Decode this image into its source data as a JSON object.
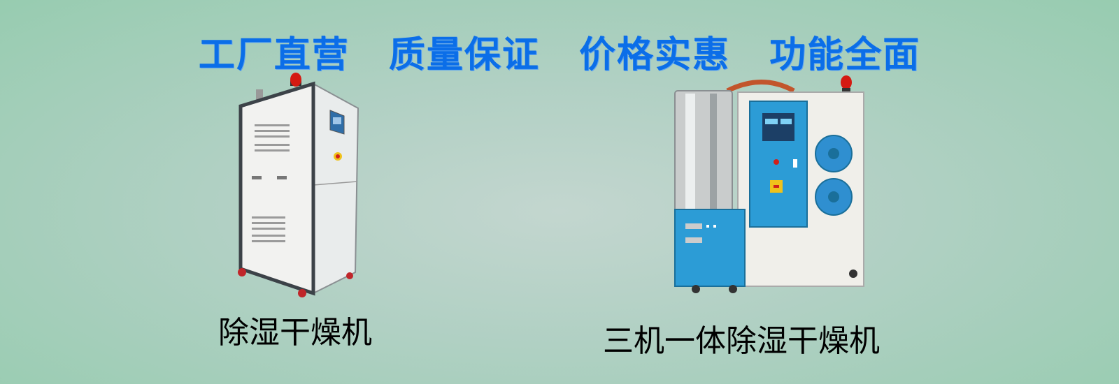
{
  "banner": {
    "slogans": [
      "工厂直营",
      "质量保证",
      "价格实惠",
      "功能全面"
    ],
    "colors": {
      "slogan": "#0b6ee8",
      "background_center": "#c3d6cf",
      "background_edge": "#97ccb0"
    }
  },
  "products": [
    {
      "name": "除湿干燥机",
      "image": "dehumidifier-dryer"
    },
    {
      "name": "三机一体除湿干燥机",
      "image": "three-in-one-dehumidifying-dryer"
    }
  ]
}
